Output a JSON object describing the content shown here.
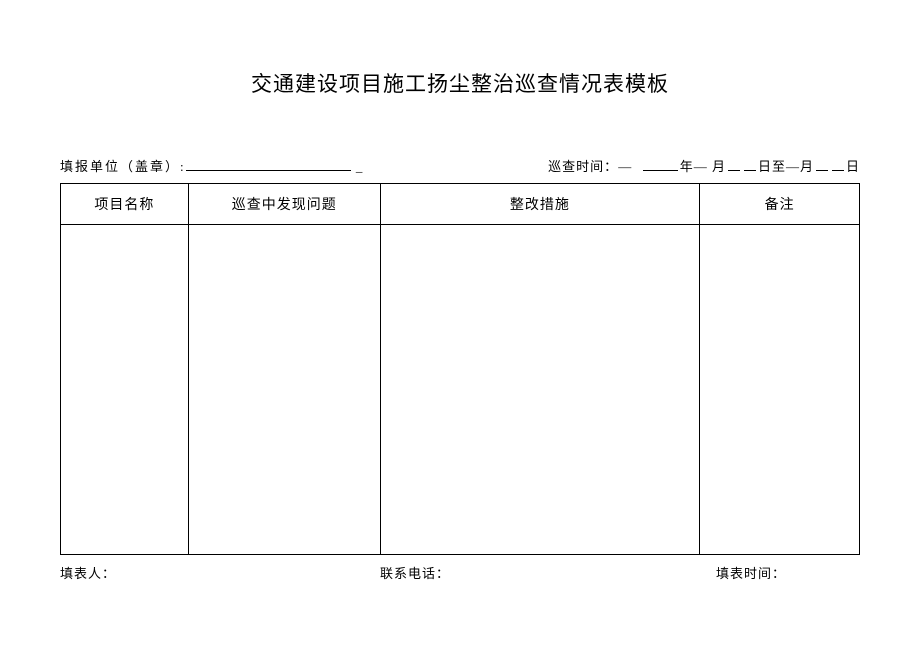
{
  "title": "交通建设项目施工扬尘整治巡查情况表模板",
  "header": {
    "reporting_unit_label": "填报单位（盖章）:",
    "inspection_time_label": "巡查时间：",
    "dash": "—",
    "year_suffix": "年—",
    "month_suffix": "月",
    "to_suffix": "日至—月",
    "day_suffix": "日"
  },
  "table": {
    "columns": [
      "项目名称",
      "巡查中发现问题",
      "整改措施",
      "备注"
    ]
  },
  "footer": {
    "filler_label": "填表人：",
    "contact_label": "联系电话：",
    "fill_time_label": "填表时间："
  }
}
